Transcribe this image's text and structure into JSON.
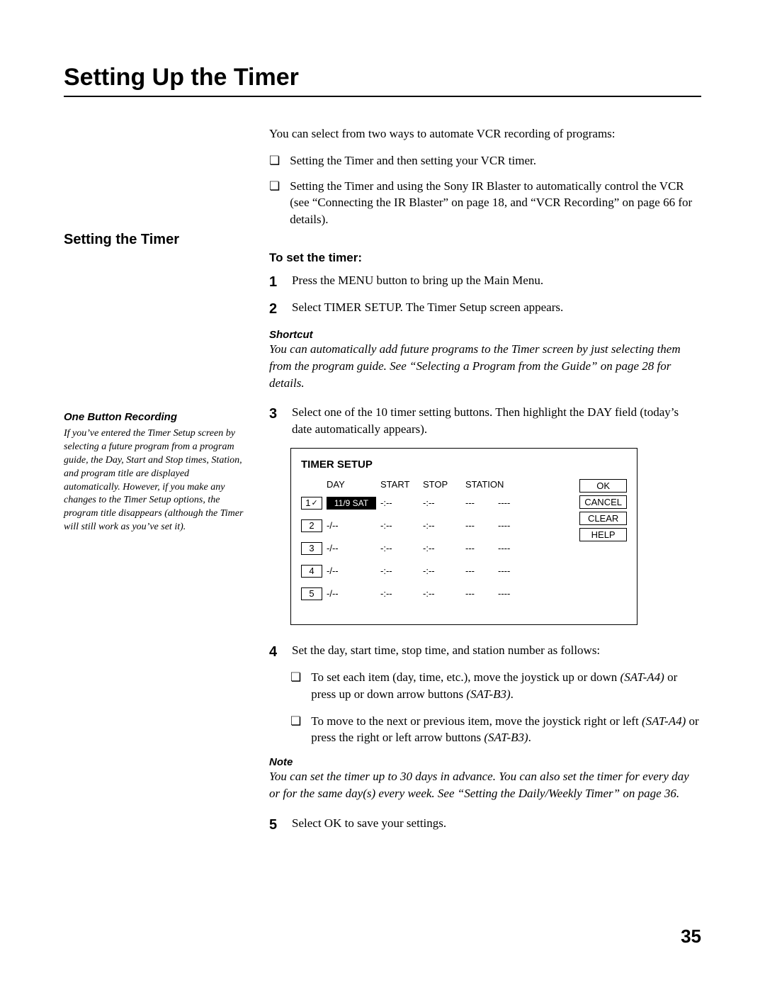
{
  "page_title": "Setting Up the Timer",
  "page_number": "35",
  "intro": "You can select from two ways to automate VCR recording of programs:",
  "intro_bullets": [
    "Setting the Timer and then setting your VCR timer.",
    "Setting the Timer and using the Sony IR Blaster to automatically control the VCR (see “Connecting the IR Blaster” on page 18, and “VCR Recording” on page 66 for details)."
  ],
  "section_heading": "Setting the Timer",
  "sub_heading": "To set the timer:",
  "steps": {
    "1": "Press the MENU button to bring up the Main Menu.",
    "2": "Select TIMER SETUP. The Timer Setup screen appears.",
    "3": "Select one of the 10 timer setting buttons. Then highlight the DAY field (today’s date automatically appears).",
    "4": "Set the day, start time, stop time, and station number as follows:",
    "5": "Select OK to save your settings."
  },
  "shortcut": {
    "title": "Shortcut",
    "body": "You can automatically add future programs to the Timer screen by just selecting them from the program guide. See “Selecting a Program from the Guide” on page 28 for details."
  },
  "sidebar": {
    "title": "One Button Recording",
    "body": "If you’ve entered the Timer Setup screen by selecting a future program from a program guide, the Day, Start and Stop times, Station, and program title are displayed automatically. However, if you make any changes to the Timer Setup options, the program title disappears (although the Timer will still work as you’ve set it)."
  },
  "timer_setup": {
    "title": "TIMER SETUP",
    "columns": {
      "day": "DAY",
      "start": "START",
      "stop": "STOP",
      "station": "STATION"
    },
    "rows": [
      {
        "slot": "1",
        "checked": true,
        "day": "11/9 SAT",
        "selected": true,
        "start": "-:--",
        "stop": "-:--",
        "sta1": "---",
        "sta2": "----"
      },
      {
        "slot": "2",
        "checked": false,
        "day": "-/--",
        "selected": false,
        "start": "-:--",
        "stop": "-:--",
        "sta1": "---",
        "sta2": "----"
      },
      {
        "slot": "3",
        "checked": false,
        "day": "-/--",
        "selected": false,
        "start": "-:--",
        "stop": "-:--",
        "sta1": "---",
        "sta2": "----"
      },
      {
        "slot": "4",
        "checked": false,
        "day": "-/--",
        "selected": false,
        "start": "-:--",
        "stop": "-:--",
        "sta1": "---",
        "sta2": "----"
      },
      {
        "slot": "5",
        "checked": false,
        "day": "-/--",
        "selected": false,
        "start": "-:--",
        "stop": "-:--",
        "sta1": "---",
        "sta2": "----"
      }
    ],
    "buttons": [
      "OK",
      "CANCEL",
      "CLEAR",
      "HELP"
    ]
  },
  "step4_bullets": [
    {
      "pre": "To set each item (day, time, etc.), move the joystick up or down ",
      "m1": "(SAT-A4)",
      "mid": " or press up or down arrow buttons ",
      "m2": "(SAT-B3)",
      "post": "."
    },
    {
      "pre": "To move to the next or previous item, move the joystick right or left ",
      "m1": "(SAT-A4)",
      "mid": " or press the right or left arrow buttons ",
      "m2": "(SAT-B3)",
      "post": "."
    }
  ],
  "note": {
    "title": "Note",
    "body": "You can set the timer up to 30 days in advance. You can also set the timer for every day or for the same day(s) every week. See “Setting the Daily/Weekly Timer” on page 36."
  },
  "glyphs": {
    "square": "❏",
    "check": "✓"
  }
}
